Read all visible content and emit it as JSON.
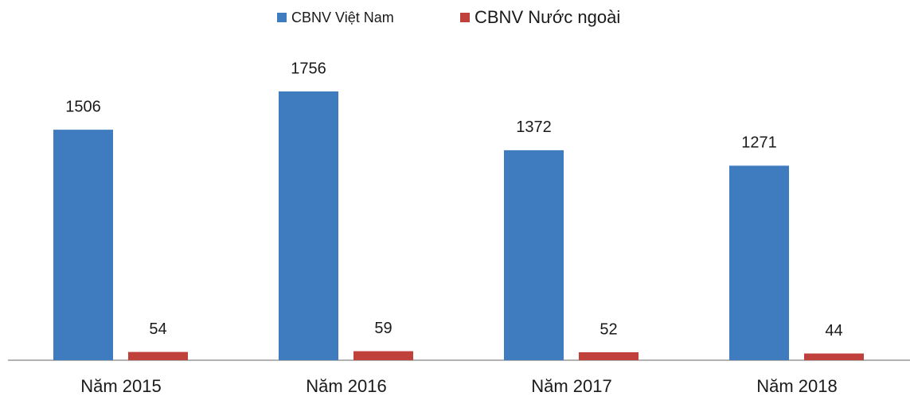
{
  "chart_data": {
    "type": "bar",
    "categories": [
      "Năm 2015",
      "Năm 2016",
      "Năm 2017",
      "Năm 2018"
    ],
    "series": [
      {
        "name": "CBNV Việt Nam",
        "color": "#3f7bbf",
        "values": [
          1506,
          1756,
          1372,
          1271
        ]
      },
      {
        "name": "CBNV Nước ngoài",
        "color": "#c0403c",
        "values": [
          54,
          59,
          52,
          44
        ]
      }
    ],
    "legend": "top"
  }
}
